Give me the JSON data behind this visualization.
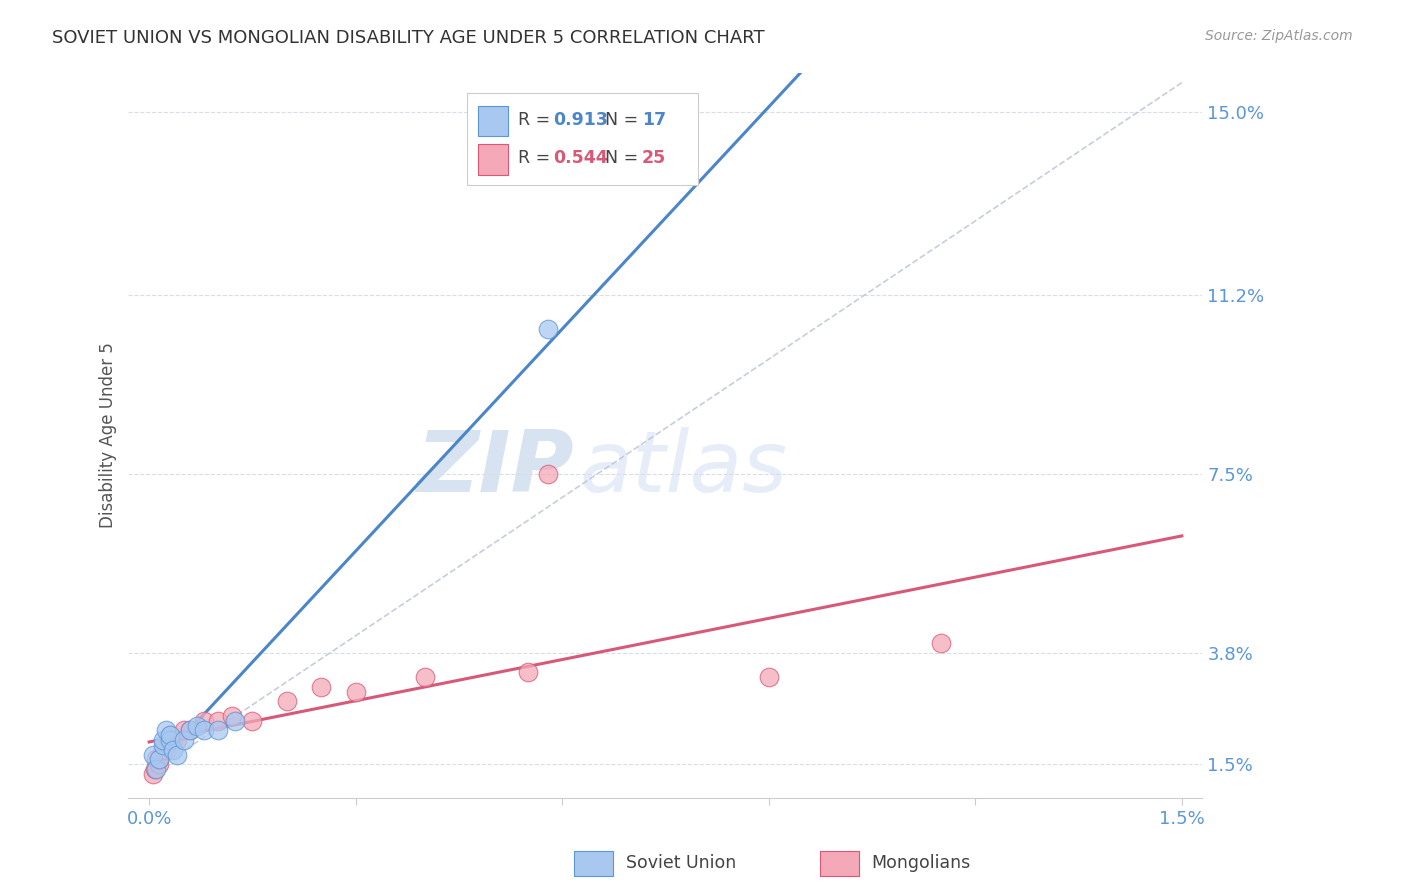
{
  "title": "SOVIET UNION VS MONGOLIAN DISABILITY AGE UNDER 5 CORRELATION CHART",
  "source": "Source: ZipAtlas.com",
  "ylabel": "Disability Age Under 5",
  "xlim": [
    -0.0003,
    0.0153
  ],
  "ylim": [
    0.008,
    0.158
  ],
  "x_tick_pos": [
    0.0,
    0.003,
    0.006,
    0.009,
    0.012,
    0.015
  ],
  "x_tick_labels": [
    "0.0%",
    "",
    "",
    "",
    "",
    "1.5%"
  ],
  "y_ticks_right": [
    0.015,
    0.038,
    0.075,
    0.112,
    0.15
  ],
  "y_tick_labels_right": [
    "1.5%",
    "3.8%",
    "7.5%",
    "11.2%",
    "15.0%"
  ],
  "soviet_x": [
    5e-05,
    0.0001,
    0.00015,
    0.0002,
    0.0002,
    0.00025,
    0.0003,
    0.0003,
    0.00035,
    0.0004,
    0.0005,
    0.0006,
    0.0007,
    0.0008,
    0.001,
    0.00125,
    0.0058
  ],
  "soviet_y": [
    0.017,
    0.014,
    0.016,
    0.019,
    0.02,
    0.022,
    0.02,
    0.021,
    0.018,
    0.017,
    0.02,
    0.022,
    0.023,
    0.022,
    0.022,
    0.024,
    0.105
  ],
  "mongolia_x": [
    5e-05,
    8e-05,
    0.0001,
    0.00015,
    0.00015,
    0.0002,
    0.00025,
    0.0003,
    0.0003,
    0.00035,
    0.0004,
    0.0005,
    0.0006,
    0.0008,
    0.001,
    0.0012,
    0.0015,
    0.002,
    0.0025,
    0.003,
    0.004,
    0.0055,
    0.0058,
    0.009,
    0.0115
  ],
  "mongolia_y": [
    0.013,
    0.014,
    0.016,
    0.015,
    0.016,
    0.018,
    0.018,
    0.02,
    0.021,
    0.02,
    0.02,
    0.022,
    0.022,
    0.024,
    0.024,
    0.025,
    0.024,
    0.028,
    0.031,
    0.03,
    0.033,
    0.034,
    0.075,
    0.033,
    0.04
  ],
  "soviet_color": "#a8c8f0",
  "mongolia_color": "#f4a8b8",
  "soviet_edge_color": "#5a96d8",
  "mongolia_edge_color": "#d85878",
  "soviet_line_color": "#4a86c8",
  "mongolia_line_color": "#d85878",
  "ref_line_color": "#c0c8d8",
  "grid_color": "#d8dde8",
  "R_soviet": "0.913",
  "N_soviet": "17",
  "R_mongolia": "0.544",
  "N_mongolia": "25",
  "watermark_zip": "ZIP",
  "watermark_atlas": "atlas",
  "title_color": "#333333",
  "source_color": "#999999",
  "tick_label_color": "#5a96d8"
}
